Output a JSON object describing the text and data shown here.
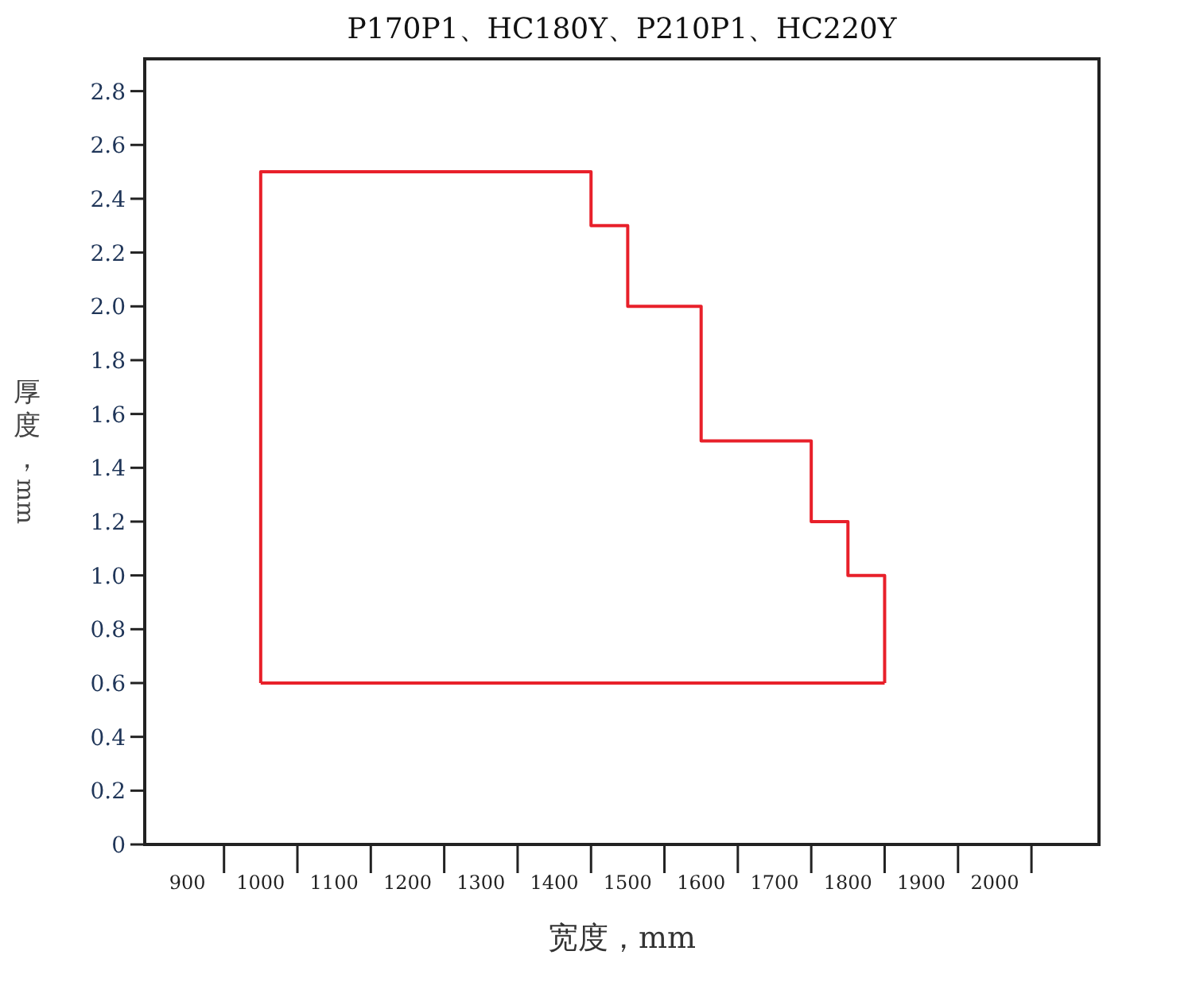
{
  "chart_data": {
    "type": "line",
    "title": "P170P1、HC180Y、P210P1、HC220Y",
    "xlabel": "宽度，mm",
    "ylabel": "厚度，mm",
    "x": [
      1000,
      1000,
      1450,
      1450,
      1500,
      1500,
      1600,
      1600,
      1750,
      1750,
      1800,
      1800,
      1850,
      1850
    ],
    "series": [
      {
        "color": "#e8202a",
        "values": [
          0.6,
          2.5,
          2.5,
          2.3,
          2.3,
          2.0,
          2.0,
          1.5,
          1.5,
          1.2,
          1.2,
          1.0,
          1.0,
          0.6
        ]
      },
      {
        "color": "#e8202a",
        "x": [
          1000,
          1850
        ],
        "values": [
          0.6,
          0.6
        ]
      }
    ],
    "xlim": [
      842,
      2142
    ],
    "ylim": [
      0,
      2.92
    ],
    "xticks": [
      900,
      1000,
      1100,
      1200,
      1300,
      1400,
      1500,
      1600,
      1700,
      1800,
      1900,
      2000
    ],
    "yticks": [
      0,
      0.2,
      0.4,
      0.6,
      0.8,
      {
        "value": 1,
        "label": "1.0"
      },
      1.2,
      1.4,
      1.6,
      1.8,
      {
        "value": 2,
        "label": "2.0"
      },
      2.2,
      2.4,
      2.6,
      2.8
    ]
  }
}
